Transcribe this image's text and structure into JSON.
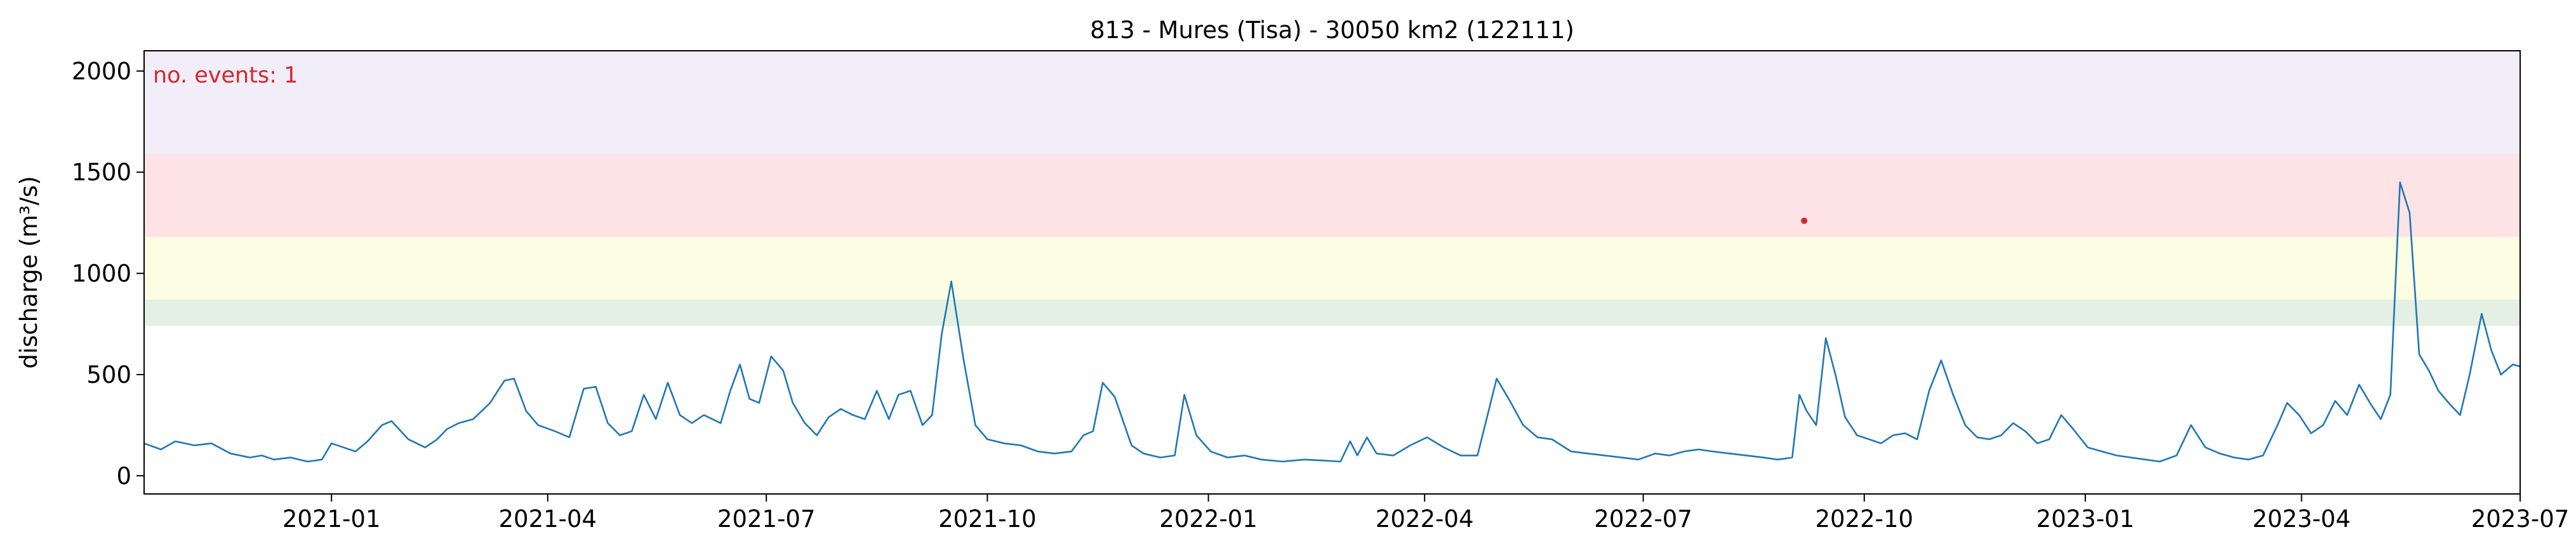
{
  "chart_data": {
    "type": "line",
    "title": "813 - Mures (Tisa) - 30050 km2 (122111)",
    "xlabel": "",
    "ylabel": "discharge (m³/s)",
    "x_range": [
      "2020-10-15",
      "2023-07-01"
    ],
    "ylim": [
      -90,
      2100
    ],
    "y_ticks": [
      0,
      500,
      1000,
      1500,
      2000
    ],
    "x_ticks": [
      {
        "date": "2021-01-01",
        "label": "2021-01"
      },
      {
        "date": "2021-04-01",
        "label": "2021-04"
      },
      {
        "date": "2021-07-01",
        "label": "2021-07"
      },
      {
        "date": "2021-10-01",
        "label": "2021-10"
      },
      {
        "date": "2022-01-01",
        "label": "2022-01"
      },
      {
        "date": "2022-04-01",
        "label": "2022-04"
      },
      {
        "date": "2022-07-01",
        "label": "2022-07"
      },
      {
        "date": "2022-10-01",
        "label": "2022-10"
      },
      {
        "date": "2023-01-01",
        "label": "2023-01"
      },
      {
        "date": "2023-04-01",
        "label": "2023-04"
      },
      {
        "date": "2023-07-01",
        "label": "2023-07"
      }
    ],
    "grid": false,
    "threshold_bands": [
      {
        "from": 740,
        "to": 870,
        "color": "#e3f0e3"
      },
      {
        "from": 870,
        "to": 1180,
        "color": "#fdfde3"
      },
      {
        "from": 1180,
        "to": 1590,
        "color": "#fde3e5"
      },
      {
        "from": 1590,
        "to": 2100,
        "color": "#f1eefa"
      }
    ],
    "line_color": "#1f77b4",
    "event_color": "#d62728",
    "annotation": {
      "text": "no. events: 1",
      "color": "#d62728"
    },
    "events": [
      {
        "date": "2022-09-06",
        "value": 1260
      }
    ],
    "series": [
      {
        "points": [
          [
            "2020-10-15",
            160
          ],
          [
            "2020-10-22",
            130
          ],
          [
            "2020-10-28",
            170
          ],
          [
            "2020-11-05",
            150
          ],
          [
            "2020-11-12",
            160
          ],
          [
            "2020-11-20",
            110
          ],
          [
            "2020-11-28",
            90
          ],
          [
            "2020-12-03",
            100
          ],
          [
            "2020-12-08",
            80
          ],
          [
            "2020-12-15",
            90
          ],
          [
            "2020-12-22",
            70
          ],
          [
            "2020-12-28",
            80
          ],
          [
            "2021-01-01",
            160
          ],
          [
            "2021-01-06",
            140
          ],
          [
            "2021-01-11",
            120
          ],
          [
            "2021-01-16",
            170
          ],
          [
            "2021-01-22",
            250
          ],
          [
            "2021-01-26",
            270
          ],
          [
            "2021-02-02",
            180
          ],
          [
            "2021-02-09",
            140
          ],
          [
            "2021-02-14",
            180
          ],
          [
            "2021-02-18",
            230
          ],
          [
            "2021-02-23",
            260
          ],
          [
            "2021-03-01",
            280
          ],
          [
            "2021-03-08",
            360
          ],
          [
            "2021-03-14",
            470
          ],
          [
            "2021-03-18",
            480
          ],
          [
            "2021-03-23",
            320
          ],
          [
            "2021-03-28",
            250
          ],
          [
            "2021-04-04",
            220
          ],
          [
            "2021-04-10",
            190
          ],
          [
            "2021-04-16",
            430
          ],
          [
            "2021-04-21",
            440
          ],
          [
            "2021-04-26",
            260
          ],
          [
            "2021-05-01",
            200
          ],
          [
            "2021-05-06",
            220
          ],
          [
            "2021-05-11",
            400
          ],
          [
            "2021-05-16",
            280
          ],
          [
            "2021-05-21",
            460
          ],
          [
            "2021-05-26",
            300
          ],
          [
            "2021-05-31",
            260
          ],
          [
            "2021-06-05",
            300
          ],
          [
            "2021-06-12",
            260
          ],
          [
            "2021-06-16",
            420
          ],
          [
            "2021-06-20",
            550
          ],
          [
            "2021-06-24",
            380
          ],
          [
            "2021-06-28",
            360
          ],
          [
            "2021-07-03",
            590
          ],
          [
            "2021-07-08",
            520
          ],
          [
            "2021-07-12",
            360
          ],
          [
            "2021-07-17",
            260
          ],
          [
            "2021-07-22",
            200
          ],
          [
            "2021-07-27",
            290
          ],
          [
            "2021-08-01",
            330
          ],
          [
            "2021-08-06",
            300
          ],
          [
            "2021-08-11",
            280
          ],
          [
            "2021-08-16",
            420
          ],
          [
            "2021-08-21",
            280
          ],
          [
            "2021-08-25",
            400
          ],
          [
            "2021-08-30",
            420
          ],
          [
            "2021-09-04",
            250
          ],
          [
            "2021-09-08",
            300
          ],
          [
            "2021-09-12",
            700
          ],
          [
            "2021-09-16",
            960
          ],
          [
            "2021-09-21",
            580
          ],
          [
            "2021-09-26",
            250
          ],
          [
            "2021-10-01",
            180
          ],
          [
            "2021-10-08",
            160
          ],
          [
            "2021-10-15",
            150
          ],
          [
            "2021-10-22",
            120
          ],
          [
            "2021-10-29",
            110
          ],
          [
            "2021-11-05",
            120
          ],
          [
            "2021-11-10",
            200
          ],
          [
            "2021-11-14",
            220
          ],
          [
            "2021-11-18",
            460
          ],
          [
            "2021-11-23",
            390
          ],
          [
            "2021-11-30",
            150
          ],
          [
            "2021-12-05",
            110
          ],
          [
            "2021-12-12",
            90
          ],
          [
            "2021-12-18",
            100
          ],
          [
            "2021-12-22",
            400
          ],
          [
            "2021-12-27",
            200
          ],
          [
            "2022-01-02",
            120
          ],
          [
            "2022-01-09",
            90
          ],
          [
            "2022-01-16",
            100
          ],
          [
            "2022-01-23",
            80
          ],
          [
            "2022-02-01",
            70
          ],
          [
            "2022-02-10",
            80
          ],
          [
            "2022-02-18",
            75
          ],
          [
            "2022-02-25",
            70
          ],
          [
            "2022-03-01",
            170
          ],
          [
            "2022-03-04",
            100
          ],
          [
            "2022-03-08",
            190
          ],
          [
            "2022-03-12",
            110
          ],
          [
            "2022-03-19",
            100
          ],
          [
            "2022-03-26",
            150
          ],
          [
            "2022-04-02",
            190
          ],
          [
            "2022-04-09",
            140
          ],
          [
            "2022-04-16",
            100
          ],
          [
            "2022-04-23",
            100
          ],
          [
            "2022-05-01",
            480
          ],
          [
            "2022-05-06",
            380
          ],
          [
            "2022-05-12",
            250
          ],
          [
            "2022-05-18",
            190
          ],
          [
            "2022-05-24",
            180
          ],
          [
            "2022-06-01",
            120
          ],
          [
            "2022-06-08",
            110
          ],
          [
            "2022-06-15",
            100
          ],
          [
            "2022-06-22",
            90
          ],
          [
            "2022-06-29",
            80
          ],
          [
            "2022-07-06",
            110
          ],
          [
            "2022-07-12",
            100
          ],
          [
            "2022-07-18",
            120
          ],
          [
            "2022-07-24",
            130
          ],
          [
            "2022-07-30",
            120
          ],
          [
            "2022-08-06",
            110
          ],
          [
            "2022-08-13",
            100
          ],
          [
            "2022-08-20",
            90
          ],
          [
            "2022-08-26",
            80
          ],
          [
            "2022-09-01",
            90
          ],
          [
            "2022-09-04",
            400
          ],
          [
            "2022-09-07",
            320
          ],
          [
            "2022-09-11",
            250
          ],
          [
            "2022-09-15",
            680
          ],
          [
            "2022-09-19",
            500
          ],
          [
            "2022-09-23",
            290
          ],
          [
            "2022-09-28",
            200
          ],
          [
            "2022-10-03",
            180
          ],
          [
            "2022-10-08",
            160
          ],
          [
            "2022-10-13",
            200
          ],
          [
            "2022-10-18",
            210
          ],
          [
            "2022-10-23",
            180
          ],
          [
            "2022-10-28",
            420
          ],
          [
            "2022-11-02",
            570
          ],
          [
            "2022-11-07",
            400
          ],
          [
            "2022-11-12",
            250
          ],
          [
            "2022-11-17",
            190
          ],
          [
            "2022-11-22",
            180
          ],
          [
            "2022-11-27",
            200
          ],
          [
            "2022-12-02",
            260
          ],
          [
            "2022-12-07",
            220
          ],
          [
            "2022-12-12",
            160
          ],
          [
            "2022-12-17",
            180
          ],
          [
            "2022-12-22",
            300
          ],
          [
            "2022-12-27",
            230
          ],
          [
            "2023-01-02",
            140
          ],
          [
            "2023-01-08",
            120
          ],
          [
            "2023-01-14",
            100
          ],
          [
            "2023-01-20",
            90
          ],
          [
            "2023-01-26",
            80
          ],
          [
            "2023-02-01",
            70
          ],
          [
            "2023-02-08",
            100
          ],
          [
            "2023-02-14",
            250
          ],
          [
            "2023-02-20",
            140
          ],
          [
            "2023-02-26",
            110
          ],
          [
            "2023-03-04",
            90
          ],
          [
            "2023-03-10",
            80
          ],
          [
            "2023-03-16",
            100
          ],
          [
            "2023-03-22",
            250
          ],
          [
            "2023-03-26",
            360
          ],
          [
            "2023-03-31",
            300
          ],
          [
            "2023-04-05",
            210
          ],
          [
            "2023-04-10",
            250
          ],
          [
            "2023-04-15",
            370
          ],
          [
            "2023-04-20",
            300
          ],
          [
            "2023-04-25",
            450
          ],
          [
            "2023-04-30",
            350
          ],
          [
            "2023-05-04",
            280
          ],
          [
            "2023-05-08",
            400
          ],
          [
            "2023-05-12",
            1450
          ],
          [
            "2023-05-16",
            1300
          ],
          [
            "2023-05-20",
            600
          ],
          [
            "2023-05-24",
            520
          ],
          [
            "2023-05-28",
            420
          ],
          [
            "2023-06-02",
            350
          ],
          [
            "2023-06-06",
            300
          ],
          [
            "2023-06-10",
            500
          ],
          [
            "2023-06-15",
            800
          ],
          [
            "2023-06-19",
            620
          ],
          [
            "2023-06-23",
            500
          ],
          [
            "2023-06-28",
            550
          ],
          [
            "2023-07-01",
            540
          ]
        ]
      }
    ]
  }
}
